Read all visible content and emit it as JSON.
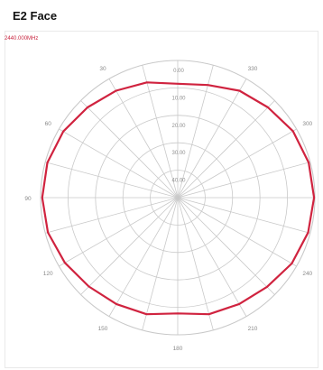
{
  "title": "E2 Face",
  "frequency_label": "2440.000MHz",
  "colors": {
    "trace": "#d0233f",
    "grid": "#c9c9c9",
    "angle_text": "#8a8a8a",
    "ring_text": "#909090"
  },
  "chart_data": {
    "type": "polar",
    "title": "E2 Face",
    "subtitle": "2440.000MHz",
    "radial_ticks": [
      "0.00",
      "10.00",
      "20.00",
      "30.00",
      "40.00"
    ],
    "radial_values": [
      0,
      10,
      20,
      30,
      40
    ],
    "radial_range": [
      0,
      50
    ],
    "angular_ticks": [
      {
        "angle": 0,
        "label": ""
      },
      {
        "angle": 30,
        "label": "330"
      },
      {
        "angle": 60,
        "label": "300"
      },
      {
        "angle": 90,
        "label": "270"
      },
      {
        "angle": 120,
        "label": "240"
      },
      {
        "angle": 150,
        "label": "210"
      },
      {
        "angle": 180,
        "label": "180"
      },
      {
        "angle": 210,
        "label": "150"
      },
      {
        "angle": 240,
        "label": "120"
      },
      {
        "angle": 270,
        "label": "90"
      },
      {
        "angle": 300,
        "label": "60"
      },
      {
        "angle": 330,
        "label": "30"
      }
    ],
    "angular_grid_step_deg": 15,
    "series": [
      {
        "points": [
          {
            "angle": 0,
            "r": 8.5
          },
          {
            "angle": 15,
            "r": 7.5
          },
          {
            "angle": 30,
            "r": 5.0
          },
          {
            "angle": 45,
            "r": 3.5
          },
          {
            "angle": 60,
            "r": 1.5
          },
          {
            "angle": 75,
            "r": 0.6
          },
          {
            "angle": 90,
            "r": 0.3
          },
          {
            "angle": 105,
            "r": 0.8
          },
          {
            "angle": 120,
            "r": 2.0
          },
          {
            "angle": 135,
            "r": 4.0
          },
          {
            "angle": 150,
            "r": 5.2
          },
          {
            "angle": 165,
            "r": 6.0
          },
          {
            "angle": 180,
            "r": 7.8
          },
          {
            "angle": 195,
            "r": 6.0
          },
          {
            "angle": 210,
            "r": 5.2
          },
          {
            "angle": 225,
            "r": 4.2
          },
          {
            "angle": 240,
            "r": 2.5
          },
          {
            "angle": 255,
            "r": 1.0
          },
          {
            "angle": 270,
            "r": 0.6
          },
          {
            "angle": 285,
            "r": 0.8
          },
          {
            "angle": 300,
            "r": 1.8
          },
          {
            "angle": 315,
            "r": 3.5
          },
          {
            "angle": 330,
            "r": 5.0
          },
          {
            "angle": 345,
            "r": 6.5
          }
        ]
      }
    ]
  }
}
